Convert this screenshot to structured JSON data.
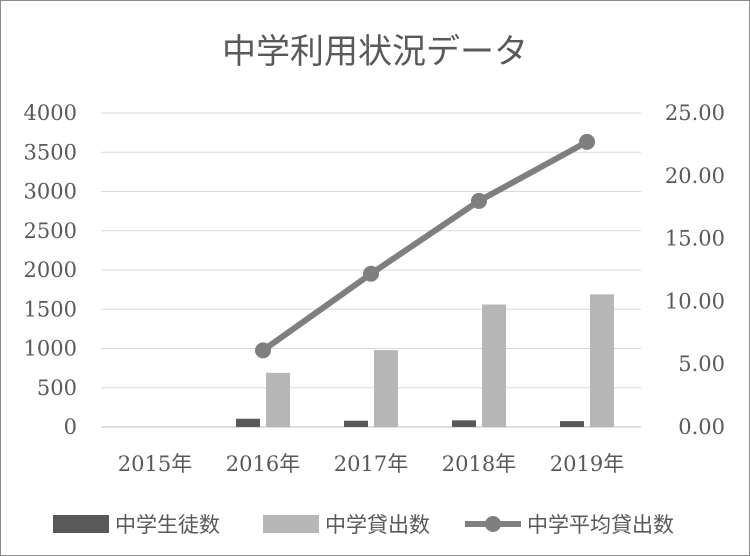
{
  "chart_data": {
    "type": "bar",
    "title": "中学利用状況データ",
    "categories": [
      "2015年",
      "2016年",
      "2017年",
      "2018年",
      "2019年"
    ],
    "y_left": {
      "ylim": [
        0,
        4000
      ],
      "ticks": [
        "0",
        "500",
        "1000",
        "1500",
        "2000",
        "2500",
        "3000",
        "3500",
        "4000"
      ]
    },
    "y_right": {
      "ylim": [
        0,
        25
      ],
      "ticks": [
        "0.00",
        "5.00",
        "10.00",
        "15.00",
        "20.00",
        "25.00"
      ]
    },
    "grid": true,
    "legend_position": "bottom",
    "series": [
      {
        "name": "中学生徒数",
        "type": "bar",
        "axis": "left",
        "color": "#595959",
        "values": [
          null,
          105,
          80,
          85,
          75
        ]
      },
      {
        "name": "中学貸出数",
        "type": "bar",
        "axis": "left",
        "color": "#b7b7b7",
        "values": [
          null,
          690,
          980,
          1560,
          1690
        ]
      },
      {
        "name": "中学平均貸出数",
        "type": "line",
        "axis": "right",
        "color": "#7f7f7f",
        "values": [
          null,
          6.1,
          12.2,
          18.0,
          22.7
        ]
      }
    ]
  }
}
